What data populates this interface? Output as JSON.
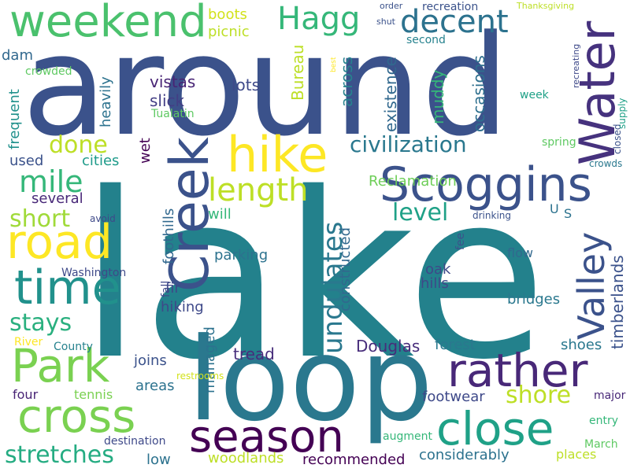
{
  "words": [
    {
      "text": "lake",
      "color": "#23818c"
    },
    {
      "text": "around",
      "color": "#3b528b"
    },
    {
      "text": "loop",
      "color": "#2a788e"
    },
    {
      "text": "Creek",
      "color": "#3b528b"
    },
    {
      "text": "Scoggins",
      "color": "#3b528b"
    },
    {
      "text": "Water",
      "color": "#46327e"
    },
    {
      "text": "weekend",
      "color": "#4ac16d"
    },
    {
      "text": "hike",
      "color": "#fde725"
    },
    {
      "text": "road",
      "color": "#fde725"
    },
    {
      "text": "time",
      "color": "#21918c"
    },
    {
      "text": "Park",
      "color": "#7ad151"
    },
    {
      "text": "cross",
      "color": "#7ad151"
    },
    {
      "text": "season",
      "color": "#440154"
    },
    {
      "text": "rather",
      "color": "#482878"
    },
    {
      "text": "close",
      "color": "#1fa187"
    },
    {
      "text": "Valley",
      "color": "#3b528b"
    },
    {
      "text": "Hagg",
      "color": "#35b779"
    },
    {
      "text": "decent",
      "color": "#2c728e"
    },
    {
      "text": "length",
      "color": "#bddf26"
    },
    {
      "text": "civilization",
      "color": "#2a788e"
    },
    {
      "text": "undulates",
      "color": "#2a788e"
    },
    {
      "text": "mile",
      "color": "#35b779"
    },
    {
      "text": "done",
      "color": "#bddf26"
    },
    {
      "text": "short",
      "color": "#a0da39"
    },
    {
      "text": "stays",
      "color": "#2ab07f"
    },
    {
      "text": "stretches",
      "color": "#25ac82"
    },
    {
      "text": "level",
      "color": "#1fa187"
    },
    {
      "text": "shore",
      "color": "#bddf26"
    },
    {
      "text": "Douglas",
      "color": "#472d7b"
    },
    {
      "text": "timberlands",
      "color": "#3b528b"
    },
    {
      "text": "boots",
      "color": "#d2e21b"
    },
    {
      "text": "picnic",
      "color": "#bddf26"
    },
    {
      "text": "Bureau",
      "color": "#bddf26"
    },
    {
      "text": "across",
      "color": "#26828e"
    },
    {
      "text": "existence",
      "color": "#31688e"
    },
    {
      "text": "occasions",
      "color": "#2e6f8e"
    },
    {
      "text": "muddy",
      "color": "#35b779"
    },
    {
      "text": "Reclamation",
      "color": "#6ece58"
    },
    {
      "text": "vistas",
      "color": "#482475"
    },
    {
      "text": "slick",
      "color": "#433e85"
    },
    {
      "text": "lots",
      "color": "#3e4989"
    },
    {
      "text": "heavily",
      "color": "#2c728e"
    },
    {
      "text": "frequent",
      "color": "#21918c"
    },
    {
      "text": "dam",
      "color": "#31688e"
    },
    {
      "text": "crowded",
      "color": "#5ec962"
    },
    {
      "text": "used",
      "color": "#3b528b"
    },
    {
      "text": "cities",
      "color": "#1e9b8a"
    },
    {
      "text": "wet",
      "color": "#440154"
    },
    {
      "text": "foothills",
      "color": "#31688e"
    },
    {
      "text": "several",
      "color": "#482878"
    },
    {
      "text": "will",
      "color": "#35b779"
    },
    {
      "text": "parking",
      "color": "#2c728e"
    },
    {
      "text": "constructed",
      "color": "#31688e"
    },
    {
      "text": "oak",
      "color": "#3e4989"
    },
    {
      "text": "hills",
      "color": "#3e4989"
    },
    {
      "text": "fir",
      "color": "#3e4989"
    },
    {
      "text": "hiking",
      "color": "#3e4989"
    },
    {
      "text": "bridges",
      "color": "#2a788e"
    },
    {
      "text": "forest",
      "color": "#2a788e"
    },
    {
      "text": "shoes",
      "color": "#2a788e"
    },
    {
      "text": "joins",
      "color": "#3b528b"
    },
    {
      "text": "areas",
      "color": "#2c728e"
    },
    {
      "text": "tread",
      "color": "#472d7b"
    },
    {
      "text": "managed",
      "color": "#2c728e"
    },
    {
      "text": "footwear",
      "color": "#3e4989"
    },
    {
      "text": "four",
      "color": "#482475"
    },
    {
      "text": "tennis",
      "color": "#7ad151"
    },
    {
      "text": "low",
      "color": "#2c728e"
    },
    {
      "text": "woodlands",
      "color": "#bddf26"
    },
    {
      "text": "recommended",
      "color": "#440154"
    },
    {
      "text": "considerably",
      "color": "#2c728e"
    },
    {
      "text": "places",
      "color": "#bddf26"
    },
    {
      "text": "destination",
      "color": "#3e4989"
    },
    {
      "text": "augment",
      "color": "#35b779"
    },
    {
      "text": "entry",
      "color": "#35b779"
    },
    {
      "text": "March",
      "color": "#5ec962"
    },
    {
      "text": "major",
      "color": "#482878"
    },
    {
      "text": "Washington",
      "color": "#3e4989"
    },
    {
      "text": "fall",
      "color": "#3e4989"
    },
    {
      "text": "River",
      "color": "#fde725"
    },
    {
      "text": "County",
      "color": "#26828e"
    },
    {
      "text": "restrooms",
      "color": "#d2e21b"
    },
    {
      "text": "avoid",
      "color": "#3e4989"
    },
    {
      "text": "drinking",
      "color": "#3b528b"
    },
    {
      "text": "fee",
      "color": "#3b528b"
    },
    {
      "text": "flow",
      "color": "#31688e"
    },
    {
      "text": "U",
      "color": "#2c728e"
    },
    {
      "text": "S",
      "color": "#2c728e"
    },
    {
      "text": "spring",
      "color": "#5ec962"
    },
    {
      "text": "week",
      "color": "#1fa187"
    },
    {
      "text": "crowds",
      "color": "#2a788e"
    },
    {
      "text": "closed",
      "color": "#3b528b"
    },
    {
      "text": "supply",
      "color": "#1fa187"
    },
    {
      "text": "recreating",
      "color": "#3e4989"
    },
    {
      "text": "recreation",
      "color": "#3b528b"
    },
    {
      "text": "order",
      "color": "#3b528b"
    },
    {
      "text": "shut",
      "color": "#3b528b"
    },
    {
      "text": "second",
      "color": "#26828e"
    },
    {
      "text": "best",
      "color": "#fde725"
    },
    {
      "text": "Thanksgiving",
      "color": "#bddf26"
    },
    {
      "text": "Tualatin",
      "color": "#5ec962"
    }
  ]
}
